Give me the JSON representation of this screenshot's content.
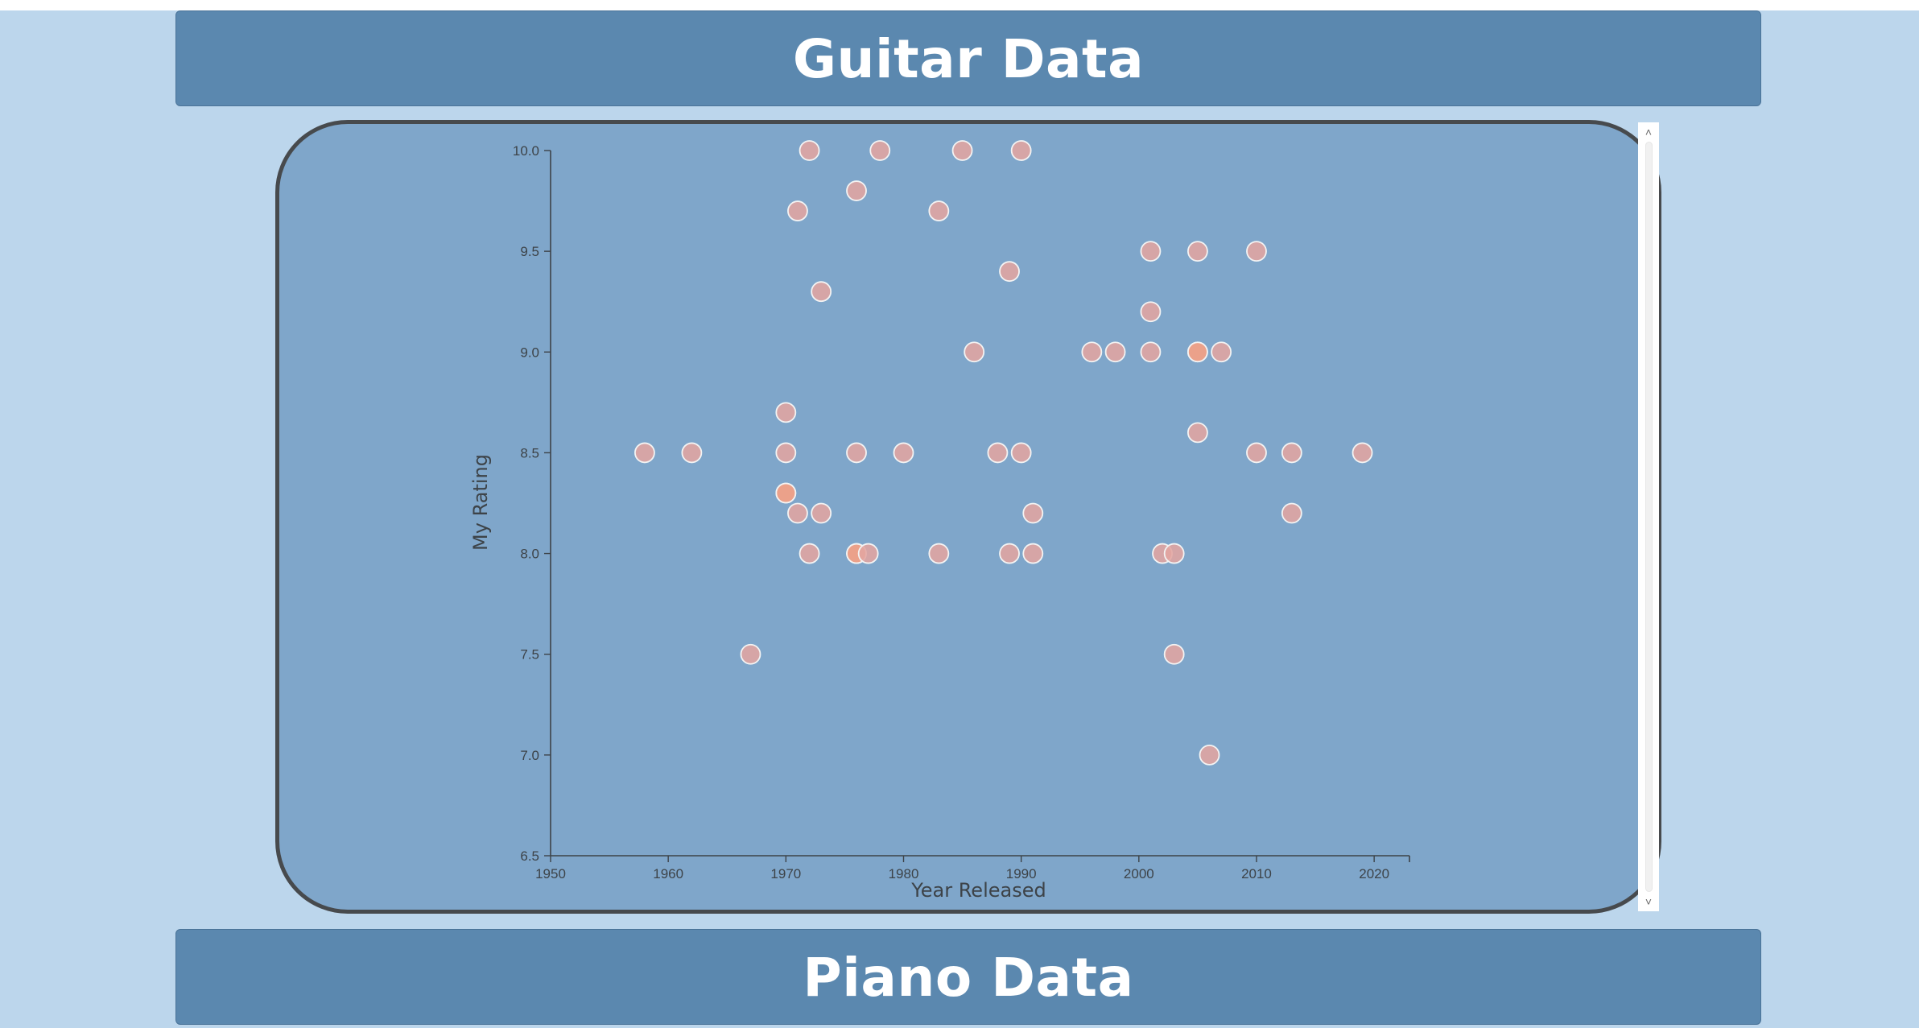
{
  "banners": {
    "top": "Guitar Data",
    "bottom": "Piano Data"
  },
  "colors": {
    "background": "#bcd6ec",
    "banner": "#5b88af",
    "panel": "#7fa6ca",
    "panel_border": "#474a4d",
    "point": "#e3a5a0",
    "point_highlight": "#f2a086",
    "point_stroke": "#f3f3f3",
    "axis": "#3d4348"
  },
  "chart_data": {
    "type": "scatter",
    "title": "",
    "xlabel": "Year Released",
    "ylabel": "My Rating",
    "xlim": [
      1950,
      2023
    ],
    "ylim": [
      6.5,
      10.0
    ],
    "xticks": [
      "1950",
      "1960",
      "1970",
      "1980",
      "1990",
      "2000",
      "2010",
      "2020"
    ],
    "yticks": [
      "6.5",
      "7.0",
      "7.5",
      "8.0",
      "8.5",
      "9.0",
      "9.5",
      "10.0"
    ],
    "grid": false,
    "points": [
      {
        "x": 1958,
        "y": 8.5
      },
      {
        "x": 1962,
        "y": 8.5
      },
      {
        "x": 1967,
        "y": 7.5
      },
      {
        "x": 1970,
        "y": 8.7
      },
      {
        "x": 1970,
        "y": 8.5
      },
      {
        "x": 1970,
        "y": 8.3
      },
      {
        "x": 1970,
        "y": 8.3
      },
      {
        "x": 1971,
        "y": 9.7
      },
      {
        "x": 1971,
        "y": 8.2
      },
      {
        "x": 1972,
        "y": 10.0
      },
      {
        "x": 1972,
        "y": 8.0
      },
      {
        "x": 1973,
        "y": 9.3
      },
      {
        "x": 1973,
        "y": 8.2
      },
      {
        "x": 1976,
        "y": 9.8
      },
      {
        "x": 1976,
        "y": 8.5
      },
      {
        "x": 1976,
        "y": 8.0
      },
      {
        "x": 1976,
        "y": 8.0
      },
      {
        "x": 1977,
        "y": 8.0
      },
      {
        "x": 1978,
        "y": 10.0
      },
      {
        "x": 1980,
        "y": 8.5
      },
      {
        "x": 1983,
        "y": 9.7
      },
      {
        "x": 1983,
        "y": 8.0
      },
      {
        "x": 1985,
        "y": 10.0
      },
      {
        "x": 1986,
        "y": 9.0
      },
      {
        "x": 1988,
        "y": 8.5
      },
      {
        "x": 1989,
        "y": 9.4
      },
      {
        "x": 1989,
        "y": 8.0
      },
      {
        "x": 1990,
        "y": 10.0
      },
      {
        "x": 1990,
        "y": 8.5
      },
      {
        "x": 1991,
        "y": 8.2
      },
      {
        "x": 1991,
        "y": 8.0
      },
      {
        "x": 1996,
        "y": 9.0
      },
      {
        "x": 1998,
        "y": 9.0
      },
      {
        "x": 2001,
        "y": 9.5
      },
      {
        "x": 2001,
        "y": 9.2
      },
      {
        "x": 2001,
        "y": 9.0
      },
      {
        "x": 2002,
        "y": 8.0
      },
      {
        "x": 2003,
        "y": 8.0
      },
      {
        "x": 2003,
        "y": 7.5
      },
      {
        "x": 2005,
        "y": 9.5
      },
      {
        "x": 2005,
        "y": 9.0
      },
      {
        "x": 2005,
        "y": 9.0
      },
      {
        "x": 2005,
        "y": 8.6
      },
      {
        "x": 2006,
        "y": 7.0
      },
      {
        "x": 2007,
        "y": 9.0
      },
      {
        "x": 2010,
        "y": 9.5
      },
      {
        "x": 2010,
        "y": 8.5
      },
      {
        "x": 2013,
        "y": 8.5
      },
      {
        "x": 2013,
        "y": 8.2
      },
      {
        "x": 2019,
        "y": 8.5
      }
    ]
  }
}
